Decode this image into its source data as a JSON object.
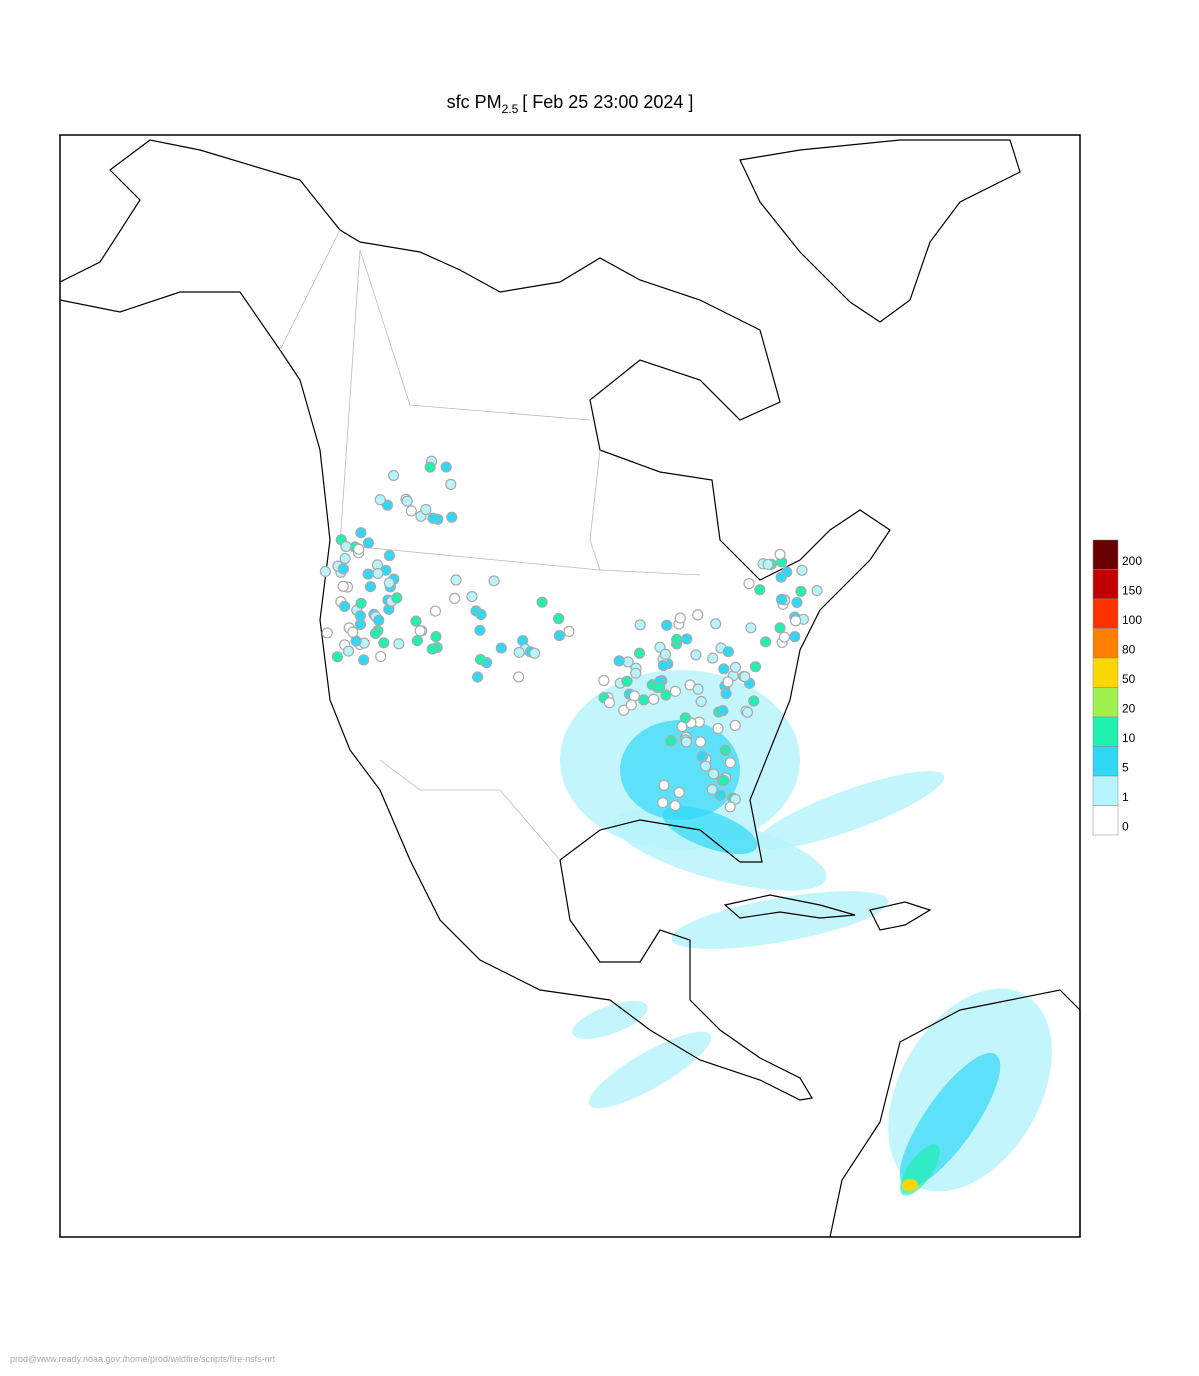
{
  "header": {
    "title_prefix": "sfc PM",
    "title_subscript": "2.5",
    "title_date": "[ Feb 25 23:00 2024 ]"
  },
  "legend": {
    "levels": [
      {
        "label": "200",
        "color": "#6b0000"
      },
      {
        "label": "150",
        "color": "#c00000"
      },
      {
        "label": "100",
        "color": "#ff3000"
      },
      {
        "label": "80",
        "color": "#ff8000"
      },
      {
        "label": "50",
        "color": "#ffd700"
      },
      {
        "label": "20",
        "color": "#a0f050"
      },
      {
        "label": "10",
        "color": "#20f0b0"
      },
      {
        "label": "5",
        "color": "#30d8f8"
      },
      {
        "label": "1",
        "color": "#b8f4fc"
      },
      {
        "label": "0",
        "color": "#ffffff"
      }
    ]
  },
  "footer": {
    "path": "prod@www.ready.noaa.gov:/home/prod/wildfire/scripts/fire-nsfs-nrt"
  }
}
